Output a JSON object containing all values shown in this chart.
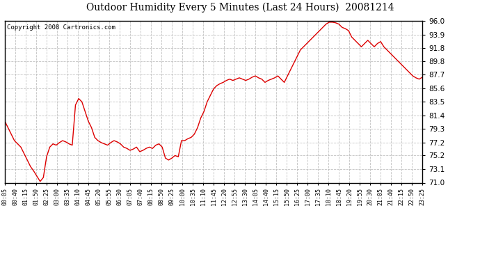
{
  "title": "Outdoor Humidity Every 5 Minutes (Last 24 Hours)  20081214",
  "copyright": "Copyright 2008 Cartronics.com",
  "line_color": "#dd0000",
  "background_color": "#ffffff",
  "grid_color": "#bbbbbb",
  "ylim": [
    71.0,
    96.0
  ],
  "yticks": [
    71.0,
    73.1,
    75.2,
    77.2,
    79.3,
    81.4,
    83.5,
    85.6,
    87.7,
    89.8,
    91.8,
    93.9,
    96.0
  ],
  "xtick_labels": [
    "00:05",
    "00:40",
    "01:15",
    "01:50",
    "02:25",
    "03:00",
    "03:35",
    "04:10",
    "04:45",
    "05:20",
    "05:55",
    "06:30",
    "07:05",
    "07:40",
    "08:15",
    "08:50",
    "09:25",
    "10:00",
    "10:35",
    "11:10",
    "11:45",
    "12:20",
    "12:55",
    "13:30",
    "14:05",
    "14:40",
    "15:15",
    "15:50",
    "16:25",
    "17:00",
    "17:35",
    "18:10",
    "18:45",
    "19:20",
    "19:55",
    "20:30",
    "21:05",
    "21:40",
    "22:15",
    "22:50",
    "23:25"
  ],
  "humidity_values": [
    80.5,
    79.5,
    78.5,
    77.5,
    77.0,
    76.5,
    75.5,
    74.5,
    73.5,
    72.8,
    72.0,
    71.2,
    71.8,
    75.0,
    76.5,
    77.0,
    76.8,
    77.2,
    77.5,
    77.3,
    77.0,
    76.8,
    83.0,
    84.0,
    83.5,
    82.0,
    80.5,
    79.5,
    78.0,
    77.5,
    77.2,
    77.0,
    76.8,
    77.2,
    77.5,
    77.3,
    77.0,
    76.5,
    76.3,
    76.0,
    76.2,
    76.5,
    75.8,
    76.0,
    76.3,
    76.5,
    76.3,
    76.8,
    77.0,
    76.5,
    74.8,
    74.5,
    74.8,
    75.2,
    75.0,
    77.5,
    77.5,
    77.8,
    78.0,
    78.5,
    79.5,
    81.0,
    82.0,
    83.5,
    84.5,
    85.5,
    86.0,
    86.3,
    86.5,
    86.8,
    87.0,
    86.8,
    87.0,
    87.2,
    87.0,
    86.8,
    87.0,
    87.3,
    87.5,
    87.2,
    87.0,
    86.5,
    86.8,
    87.0,
    87.2,
    87.5,
    87.0,
    86.5,
    87.5,
    88.5,
    89.5,
    90.5,
    91.5,
    92.0,
    92.5,
    93.0,
    93.5,
    94.0,
    94.5,
    95.0,
    95.5,
    95.8,
    95.8,
    95.7,
    95.5,
    95.0,
    94.8,
    94.5,
    93.5,
    93.0,
    92.5,
    92.0,
    92.5,
    93.0,
    92.5,
    92.0,
    92.5,
    92.8,
    92.0,
    91.5,
    91.0,
    90.5,
    90.0,
    89.5,
    89.0,
    88.5,
    88.0,
    87.5,
    87.2,
    87.0,
    87.3
  ]
}
